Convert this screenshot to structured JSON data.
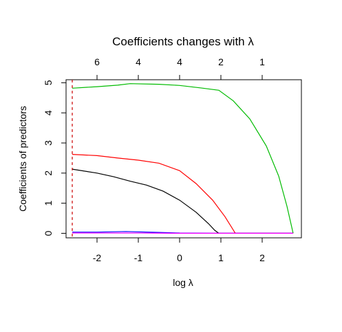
{
  "chart_data": {
    "type": "line",
    "title": "Coefficients changes with λ",
    "xlabel": "log λ",
    "ylabel": "Coefficients of predictors",
    "xlim": [
      -2.75,
      2.95
    ],
    "ylim": [
      -0.15,
      5.1
    ],
    "x_ticks": [
      -2,
      -1,
      0,
      1,
      2
    ],
    "y_ticks": [
      0,
      1,
      2,
      3,
      4,
      5
    ],
    "top_axis": {
      "ticks": [
        {
          "x": -2,
          "label": "6"
        },
        {
          "x": -1,
          "label": "4"
        },
        {
          "x": 0,
          "label": "4"
        },
        {
          "x": 1,
          "label": "2"
        },
        {
          "x": 2,
          "label": "1"
        }
      ]
    },
    "reference_line": {
      "x": -2.6,
      "color": "#cc0000",
      "style": "dashed"
    },
    "grid": false,
    "legend": "none",
    "series": [
      {
        "color": "#00bb00",
        "points": [
          [
            -2.6,
            4.82
          ],
          [
            -2.0,
            4.87
          ],
          [
            -1.5,
            4.92
          ],
          [
            -1.2,
            4.97
          ],
          [
            -0.5,
            4.95
          ],
          [
            0.0,
            4.91
          ],
          [
            0.5,
            4.83
          ],
          [
            0.95,
            4.75
          ],
          [
            1.3,
            4.4
          ],
          [
            1.7,
            3.8
          ],
          [
            2.1,
            2.9
          ],
          [
            2.4,
            1.9
          ],
          [
            2.6,
            0.9
          ],
          [
            2.75,
            0.0
          ]
        ]
      },
      {
        "color": "#ff0000",
        "points": [
          [
            -2.6,
            2.62
          ],
          [
            -2.0,
            2.58
          ],
          [
            -1.5,
            2.5
          ],
          [
            -1.0,
            2.43
          ],
          [
            -0.5,
            2.33
          ],
          [
            0.0,
            2.08
          ],
          [
            0.4,
            1.65
          ],
          [
            0.8,
            1.1
          ],
          [
            1.1,
            0.55
          ],
          [
            1.35,
            0.0
          ],
          [
            2.75,
            0.0
          ]
        ]
      },
      {
        "color": "#000000",
        "points": [
          [
            -2.6,
            2.13
          ],
          [
            -2.0,
            2.0
          ],
          [
            -1.6,
            1.88
          ],
          [
            -1.2,
            1.73
          ],
          [
            -0.8,
            1.6
          ],
          [
            -0.4,
            1.4
          ],
          [
            0.0,
            1.1
          ],
          [
            0.4,
            0.7
          ],
          [
            0.7,
            0.32
          ],
          [
            0.85,
            0.1
          ],
          [
            0.95,
            0.0
          ],
          [
            2.75,
            0.0
          ]
        ]
      },
      {
        "color": "#0000ff",
        "points": [
          [
            -2.6,
            0.04
          ],
          [
            -2.0,
            0.04
          ],
          [
            -1.3,
            0.06
          ],
          [
            -0.5,
            0.03
          ],
          [
            0.0,
            0.01
          ],
          [
            1.0,
            0.0
          ],
          [
            2.75,
            0.0
          ]
        ]
      },
      {
        "color": "#ff00ff",
        "points": [
          [
            -2.6,
            0.01
          ],
          [
            -1.0,
            0.01
          ],
          [
            0.0,
            0.0
          ],
          [
            2.75,
            0.0
          ]
        ]
      }
    ]
  }
}
